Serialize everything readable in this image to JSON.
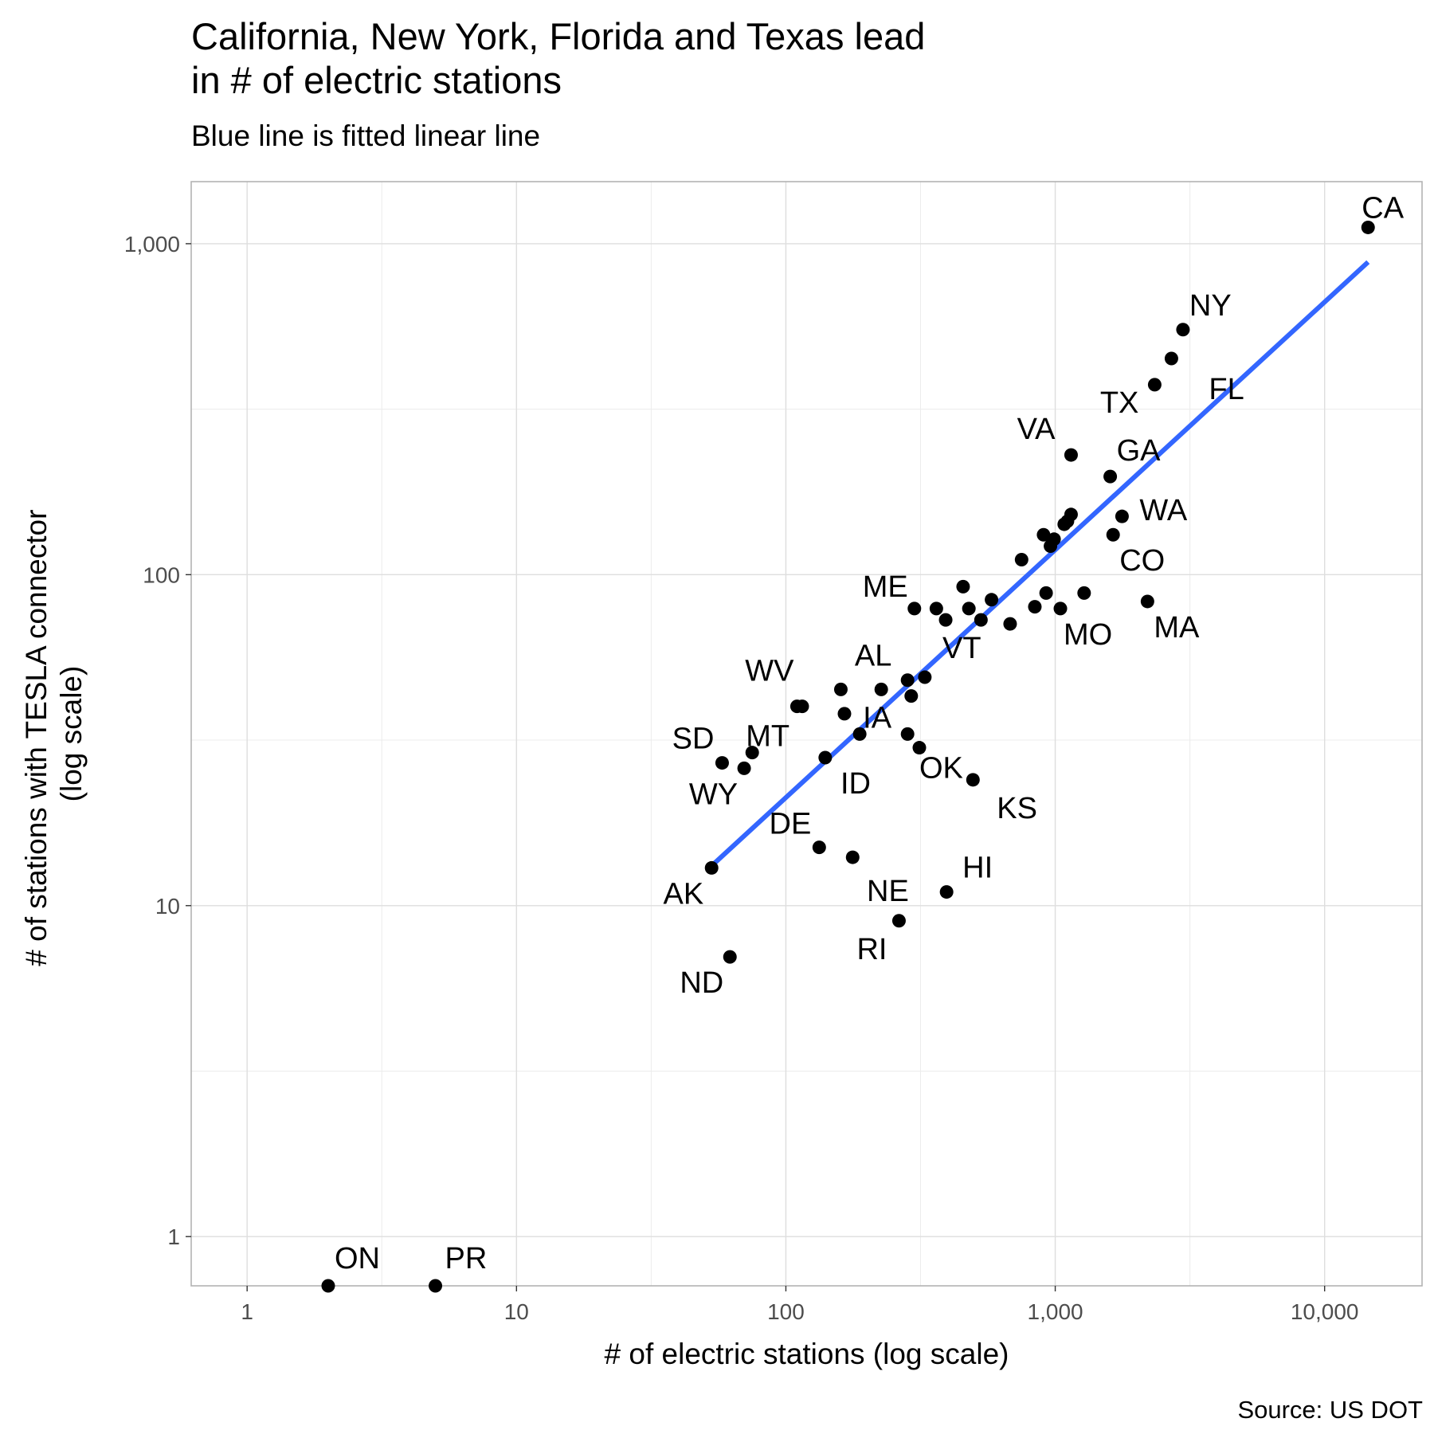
{
  "chart_data": {
    "type": "scatter",
    "title": "California, New York, Florida and Texas lead\nin # of electric stations",
    "subtitle": "Blue line is fitted linear line",
    "caption": "Source: US DOT",
    "xlabel": "# of electric stations (log scale)",
    "ylabel": "# of stations with TESLA connector\n(log scale)",
    "x_scale": "log10",
    "y_scale": "log10",
    "xlim": [
      0.62,
      23000
    ],
    "ylim": [
      0.71,
      1540
    ],
    "x_ticks": [
      1,
      10,
      100,
      1000,
      10000
    ],
    "x_tick_labels": [
      "1",
      "10",
      "100",
      "1,000",
      "10,000"
    ],
    "y_ticks": [
      1,
      10,
      100,
      1000
    ],
    "y_tick_labels": [
      "1",
      "10",
      "100",
      "1,000"
    ],
    "grid": true,
    "point_color": "#000000",
    "fit_line": {
      "label": "fitted linear line",
      "color": "#3366FF",
      "x": [
        52,
        14500
      ],
      "y": [
        13,
        880
      ]
    },
    "points": [
      {
        "x": 14500,
        "y": 1120
      },
      {
        "x": 2980,
        "y": 550
      },
      {
        "x": 2700,
        "y": 450
      },
      {
        "x": 2340,
        "y": 375
      },
      {
        "x": 1145,
        "y": 230
      },
      {
        "x": 1600,
        "y": 198
      },
      {
        "x": 1770,
        "y": 150
      },
      {
        "x": 1640,
        "y": 132
      },
      {
        "x": 1145,
        "y": 152
      },
      {
        "x": 1080,
        "y": 142
      },
      {
        "x": 1110,
        "y": 145
      },
      {
        "x": 905,
        "y": 132
      },
      {
        "x": 990,
        "y": 128
      },
      {
        "x": 960,
        "y": 122
      },
      {
        "x": 750,
        "y": 111
      },
      {
        "x": 2200,
        "y": 83
      },
      {
        "x": 1280,
        "y": 88
      },
      {
        "x": 1045,
        "y": 79
      },
      {
        "x": 925,
        "y": 88
      },
      {
        "x": 840,
        "y": 80
      },
      {
        "x": 680,
        "y": 71
      },
      {
        "x": 580,
        "y": 84
      },
      {
        "x": 530,
        "y": 73
      },
      {
        "x": 478,
        "y": 79
      },
      {
        "x": 455,
        "y": 92
      },
      {
        "x": 392,
        "y": 73
      },
      {
        "x": 362,
        "y": 79
      },
      {
        "x": 300,
        "y": 79
      },
      {
        "x": 328,
        "y": 49
      },
      {
        "x": 283,
        "y": 48
      },
      {
        "x": 292,
        "y": 43
      },
      {
        "x": 226,
        "y": 45
      },
      {
        "x": 160,
        "y": 45
      },
      {
        "x": 165,
        "y": 38
      },
      {
        "x": 188,
        "y": 33
      },
      {
        "x": 283,
        "y": 33
      },
      {
        "x": 313,
        "y": 30
      },
      {
        "x": 115,
        "y": 40
      },
      {
        "x": 110,
        "y": 40
      },
      {
        "x": 140,
        "y": 28
      },
      {
        "x": 75,
        "y": 29
      },
      {
        "x": 70,
        "y": 26
      },
      {
        "x": 58,
        "y": 27
      },
      {
        "x": 495,
        "y": 24
      },
      {
        "x": 53,
        "y": 13
      },
      {
        "x": 133,
        "y": 15
      },
      {
        "x": 177,
        "y": 14
      },
      {
        "x": 395,
        "y": 11
      },
      {
        "x": 263,
        "y": 9
      },
      {
        "x": 62,
        "y": 7
      },
      {
        "x": 2,
        "y": 0.71
      },
      {
        "x": 5,
        "y": 0.71
      }
    ],
    "labels": [
      {
        "text": "CA",
        "x": 14500,
        "y": 1120,
        "anchor": "start",
        "dx": -8,
        "dy": -12
      },
      {
        "text": "NY",
        "x": 2980,
        "y": 550,
        "anchor": "start",
        "dx": 8,
        "dy": -18
      },
      {
        "text": "FL",
        "x": 2340,
        "y": 375,
        "anchor": "start",
        "dx": 68,
        "dy": 18
      },
      {
        "text": "TX",
        "x": 2340,
        "y": 375,
        "anchor": "end",
        "dx": -20,
        "dy": 35
      },
      {
        "text": "VA",
        "x": 1145,
        "y": 230,
        "anchor": "end",
        "dx": -20,
        "dy": -20
      },
      {
        "text": "GA",
        "x": 1600,
        "y": 198,
        "anchor": "start",
        "dx": 8,
        "dy": -20
      },
      {
        "text": "WA",
        "x": 1770,
        "y": 150,
        "anchor": "start",
        "dx": 22,
        "dy": 5
      },
      {
        "text": "CO",
        "x": 1640,
        "y": 132,
        "anchor": "start",
        "dx": 8,
        "dy": 45
      },
      {
        "text": "MA",
        "x": 2200,
        "y": 83,
        "anchor": "start",
        "dx": 8,
        "dy": 45
      },
      {
        "text": "MO",
        "x": 1045,
        "y": 79,
        "anchor": "start",
        "dx": 4,
        "dy": 45
      },
      {
        "text": "ME",
        "x": 300,
        "y": 79,
        "anchor": "end",
        "dx": -8,
        "dy": -15
      },
      {
        "text": "VT",
        "x": 392,
        "y": 73,
        "anchor": "start",
        "dx": -4,
        "dy": 48
      },
      {
        "text": "AL",
        "x": 226,
        "y": 45,
        "anchor": "middle",
        "dx": -10,
        "dy": -30
      },
      {
        "text": "WV",
        "x": 110,
        "y": 40,
        "anchor": "end",
        "dx": -4,
        "dy": -32
      },
      {
        "text": "IA",
        "x": 188,
        "y": 33,
        "anchor": "start",
        "dx": 4,
        "dy": -8
      },
      {
        "text": "MT",
        "x": 75,
        "y": 29,
        "anchor": "start",
        "dx": -8,
        "dy": -8
      },
      {
        "text": "SD",
        "x": 58,
        "y": 27,
        "anchor": "end",
        "dx": -10,
        "dy": -18
      },
      {
        "text": "OK",
        "x": 313,
        "y": 30,
        "anchor": "start",
        "dx": 0,
        "dy": 38
      },
      {
        "text": "ID",
        "x": 165,
        "y": 28,
        "anchor": "middle",
        "dx": 14,
        "dy": 45
      },
      {
        "text": "WY",
        "x": 70,
        "y": 26,
        "anchor": "end",
        "dx": -8,
        "dy": 45
      },
      {
        "text": "KS",
        "x": 495,
        "y": 24,
        "anchor": "start",
        "dx": 30,
        "dy": 48
      },
      {
        "text": "DE",
        "x": 133,
        "y": 15,
        "anchor": "end",
        "dx": -10,
        "dy": -17
      },
      {
        "text": "HI",
        "x": 395,
        "y": 11,
        "anchor": "start",
        "dx": 20,
        "dy": -18
      },
      {
        "text": "NE",
        "x": 263,
        "y": 9,
        "anchor": "middle",
        "dx": -14,
        "dy": -25
      },
      {
        "text": "AK",
        "x": 53,
        "y": 13,
        "anchor": "end",
        "dx": -10,
        "dy": 45
      },
      {
        "text": "RI",
        "x": 263,
        "y": 9,
        "anchor": "end",
        "dx": -15,
        "dy": 48
      },
      {
        "text": "ND",
        "x": 62,
        "y": 7,
        "anchor": "end",
        "dx": -8,
        "dy": 45
      },
      {
        "text": "ON",
        "x": 2,
        "y": 0.71,
        "anchor": "start",
        "dx": 8,
        "dy": -22
      },
      {
        "text": "PR",
        "x": 5,
        "y": 0.71,
        "anchor": "start",
        "dx": 12,
        "dy": -22
      }
    ]
  }
}
